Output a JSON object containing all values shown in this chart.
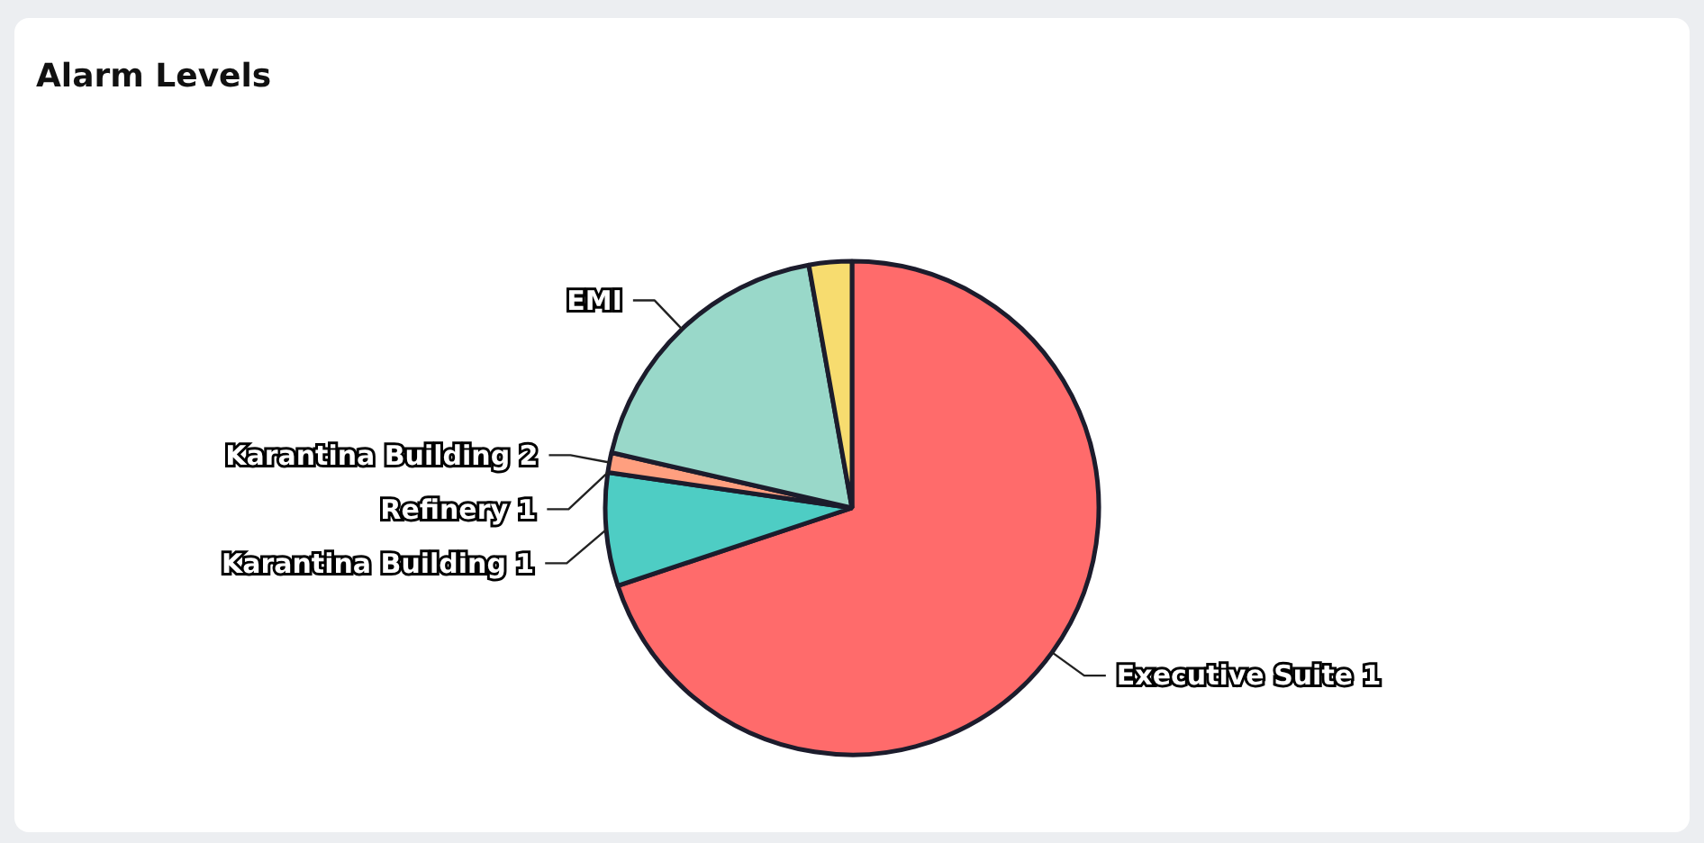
{
  "chart_data": {
    "type": "pie",
    "title": "Alarm Levels",
    "categories": [
      "Executive Suite 1",
      "Karantina Building 1",
      "Refinery 1",
      "Karantina Building 2",
      "EMI",
      null
    ],
    "values": [
      69.9,
      7.4,
      0,
      1.3,
      18.6,
      2.8
    ],
    "colors": [
      "#ff6b6b",
      "#4ecdc4",
      "#f7dc6f",
      "#ff9f7f",
      "#99d8c9",
      "#f7dc6f"
    ]
  }
}
